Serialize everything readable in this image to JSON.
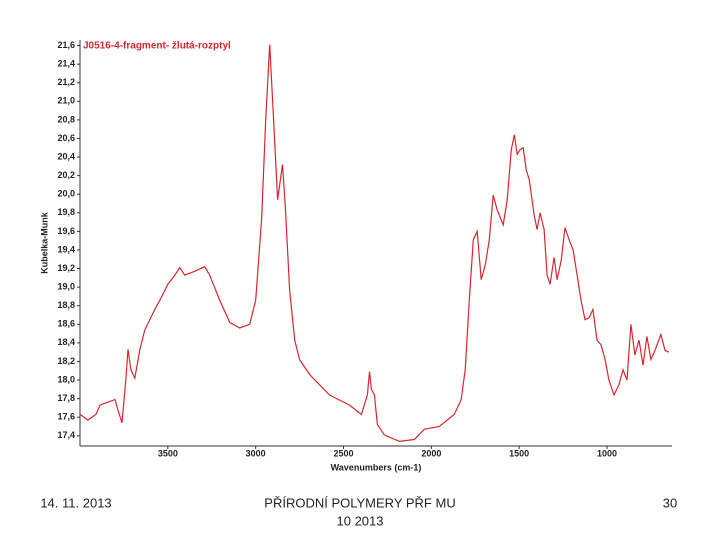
{
  "chart_data": {
    "type": "line",
    "title": "J0516-4-fragment- žlutá-rozptyl",
    "x_label": "Wavenumbers (cm-1)",
    "y_label": "Kubelka-Munk",
    "x": [
      4000,
      3955,
      3909,
      3886,
      3830,
      3801,
      3784,
      3761,
      3739,
      3727,
      3710,
      3688,
      3659,
      3631,
      3602,
      3574,
      3545,
      3500,
      3460,
      3432,
      3404,
      3347,
      3290,
      3262,
      3205,
      3148,
      3091,
      3034,
      3000,
      2966,
      2943,
      2920,
      2898,
      2875,
      2847,
      2830,
      2807,
      2778,
      2750,
      2693,
      2580,
      2466,
      2398,
      2364,
      2352,
      2341,
      2324,
      2307,
      2267,
      2182,
      2097,
      2040,
      1955,
      1869,
      1830,
      1807,
      1784,
      1761,
      1739,
      1716,
      1693,
      1670,
      1648,
      1625,
      1591,
      1568,
      1545,
      1528,
      1511,
      1494,
      1477,
      1460,
      1443,
      1415,
      1398,
      1381,
      1358,
      1341,
      1324,
      1301,
      1284,
      1261,
      1239,
      1216,
      1193,
      1170,
      1148,
      1125,
      1102,
      1080,
      1057,
      1034,
      1011,
      989,
      960,
      932,
      909,
      886,
      864,
      841,
      818,
      795,
      773,
      750,
      727,
      693,
      670,
      648
    ],
    "series": [
      {
        "name": "J0516-4-fragment- žlutá-rozptyl",
        "color": "#d8262f",
        "values": [
          17.63,
          17.57,
          17.63,
          17.73,
          17.77,
          17.79,
          17.68,
          17.54,
          18.0,
          18.33,
          18.11,
          18.02,
          18.33,
          18.54,
          18.65,
          18.76,
          18.86,
          19.03,
          19.13,
          19.21,
          19.13,
          19.17,
          19.22,
          19.13,
          18.86,
          18.62,
          18.56,
          18.6,
          18.86,
          19.73,
          20.8,
          21.61,
          20.8,
          19.94,
          20.32,
          19.83,
          18.97,
          18.43,
          18.22,
          18.06,
          17.84,
          17.73,
          17.63,
          17.84,
          18.09,
          17.9,
          17.84,
          17.52,
          17.41,
          17.34,
          17.36,
          17.47,
          17.5,
          17.63,
          17.79,
          18.11,
          18.86,
          19.51,
          19.6,
          19.08,
          19.24,
          19.51,
          19.99,
          19.83,
          19.67,
          19.94,
          20.48,
          20.64,
          20.43,
          20.48,
          20.5,
          20.26,
          20.16,
          19.78,
          19.62,
          19.8,
          19.62,
          19.13,
          19.03,
          19.32,
          19.08,
          19.29,
          19.64,
          19.51,
          19.4,
          19.13,
          18.86,
          18.65,
          18.67,
          18.76,
          18.43,
          18.38,
          18.22,
          18.0,
          17.84,
          17.95,
          18.11,
          18.0,
          18.6,
          18.27,
          18.43,
          18.16,
          18.47,
          18.22,
          18.32,
          18.49,
          18.32,
          18.3
        ]
      }
    ],
    "xlim": [
      4000,
      630
    ],
    "xticks": [
      3500,
      3000,
      2500,
      2000,
      1500,
      1000
    ],
    "ylim": [
      17.29,
      21.66
    ],
    "yticks": [
      {
        "value": 17.4,
        "label": "17,4"
      },
      {
        "value": 17.6,
        "label": "17,6"
      },
      {
        "value": 17.8,
        "label": "17,8"
      },
      {
        "value": 18.0,
        "label": "18,0"
      },
      {
        "value": 18.2,
        "label": "18,2"
      },
      {
        "value": 18.4,
        "label": "18,4"
      },
      {
        "value": 18.6,
        "label": "18,6"
      },
      {
        "value": 18.8,
        "label": "18,8"
      },
      {
        "value": 19.0,
        "label": "19,0"
      },
      {
        "value": 19.2,
        "label": "19,2"
      },
      {
        "value": 19.4,
        "label": "19,4"
      },
      {
        "value": 19.6,
        "label": "19,6"
      },
      {
        "value": 19.8,
        "label": "19,8"
      },
      {
        "value": 20.0,
        "label": "20,0"
      },
      {
        "value": 20.2,
        "label": "20,2"
      },
      {
        "value": 20.4,
        "label": "20,4"
      },
      {
        "value": 20.6,
        "label": "20,6"
      },
      {
        "value": 20.8,
        "label": "20,8"
      },
      {
        "value": 21.0,
        "label": "21,0"
      },
      {
        "value": 21.2,
        "label": "21,2"
      },
      {
        "value": 21.4,
        "label": "21,4"
      },
      {
        "value": 21.6,
        "label": "21,6"
      }
    ],
    "grid": false
  },
  "footer": {
    "date": "14. 11. 2013",
    "title": [
      "PŘÍRODNÍ POLYMERY PŘF MU",
      "10 2013"
    ],
    "page": "30"
  }
}
